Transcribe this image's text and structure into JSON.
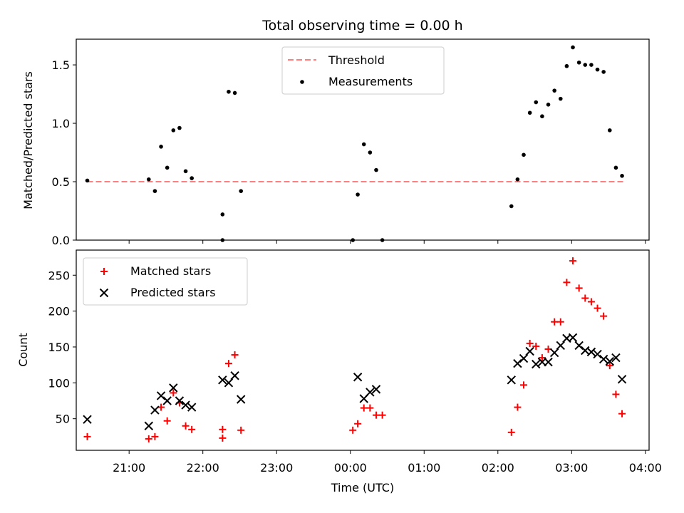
{
  "chart_data": [
    {
      "type": "scatter",
      "title": "Total observing time = 0.00 h",
      "xlabel": "",
      "ylabel": "Matched/Predicted stars",
      "ylim": [
        0,
        1.72
      ],
      "yticks": [
        "0.0",
        "0.5",
        "1.0",
        "1.5"
      ],
      "ytick_values": [
        0,
        0.5,
        1.0,
        1.5
      ],
      "legend_position": "upper-center",
      "threshold": {
        "name": "Threshold",
        "color": "#ff7f7f",
        "y": 0.5,
        "x_start": "20:26",
        "x_end": "03:42"
      },
      "series": [
        {
          "name": "Measurements",
          "color": "#000000",
          "marker": "dot",
          "points": [
            [
              "20:26",
              0.51
            ],
            [
              "21:16",
              0.52
            ],
            [
              "21:21",
              0.42
            ],
            [
              "21:26",
              0.8
            ],
            [
              "21:31",
              0.62
            ],
            [
              "21:36",
              0.94
            ],
            [
              "21:41",
              0.96
            ],
            [
              "21:46",
              0.59
            ],
            [
              "21:51",
              0.53
            ],
            [
              "22:16",
              0.22
            ],
            [
              "22:16",
              0.0
            ],
            [
              "22:21",
              1.27
            ],
            [
              "22:26",
              1.26
            ],
            [
              "22:31",
              0.42
            ],
            [
              "00:02",
              0.0
            ],
            [
              "00:06",
              0.39
            ],
            [
              "00:11",
              0.82
            ],
            [
              "00:16",
              0.75
            ],
            [
              "00:21",
              0.6
            ],
            [
              "00:26",
              0.0
            ],
            [
              "02:11",
              0.29
            ],
            [
              "02:16",
              0.52
            ],
            [
              "02:21",
              0.73
            ],
            [
              "02:26",
              1.09
            ],
            [
              "02:31",
              1.18
            ],
            [
              "02:36",
              1.06
            ],
            [
              "02:41",
              1.16
            ],
            [
              "02:46",
              1.28
            ],
            [
              "02:51",
              1.21
            ],
            [
              "02:56",
              1.49
            ],
            [
              "03:01",
              1.65
            ],
            [
              "03:06",
              1.52
            ],
            [
              "03:11",
              1.5
            ],
            [
              "03:16",
              1.5
            ],
            [
              "03:21",
              1.46
            ],
            [
              "03:26",
              1.44
            ],
            [
              "03:31",
              0.94
            ],
            [
              "03:36",
              0.62
            ],
            [
              "03:41",
              0.55
            ]
          ]
        }
      ]
    },
    {
      "type": "scatter",
      "title": "",
      "xlabel": "Time (UTC)",
      "ylabel": "Count",
      "ylim": [
        6,
        285
      ],
      "yticks": [
        "50",
        "100",
        "150",
        "200",
        "250"
      ],
      "ytick_values": [
        50,
        100,
        150,
        200,
        250
      ],
      "xticks": [
        "21:00",
        "22:00",
        "23:00",
        "00:00",
        "01:00",
        "02:00",
        "03:00",
        "04:00"
      ],
      "xlim": [
        "20:17",
        "04:03"
      ],
      "legend_position": "upper-left",
      "series": [
        {
          "name": "Matched stars",
          "color": "#ff0000",
          "marker": "plus",
          "points": [
            [
              "20:26",
              25
            ],
            [
              "21:16",
              22
            ],
            [
              "21:21",
              25
            ],
            [
              "21:26",
              66
            ],
            [
              "21:31",
              47
            ],
            [
              "21:36",
              86
            ],
            [
              "21:41",
              72
            ],
            [
              "21:46",
              40
            ],
            [
              "21:51",
              35
            ],
            [
              "22:16",
              35
            ],
            [
              "22:16",
              23
            ],
            [
              "22:21",
              127
            ],
            [
              "22:26",
              139
            ],
            [
              "22:31",
              34
            ],
            [
              "00:02",
              34
            ],
            [
              "00:06",
              43
            ],
            [
              "00:11",
              65
            ],
            [
              "00:16",
              65
            ],
            [
              "00:21",
              55
            ],
            [
              "00:26",
              55
            ],
            [
              "02:11",
              31
            ],
            [
              "02:16",
              66
            ],
            [
              "02:21",
              97
            ],
            [
              "02:26",
              155
            ],
            [
              "02:31",
              151
            ],
            [
              "02:36",
              135
            ],
            [
              "02:41",
              147
            ],
            [
              "02:46",
              185
            ],
            [
              "02:51",
              185
            ],
            [
              "02:56",
              240
            ],
            [
              "03:01",
              270
            ],
            [
              "03:06",
              232
            ],
            [
              "03:11",
              218
            ],
            [
              "03:16",
              213
            ],
            [
              "03:21",
              204
            ],
            [
              "03:26",
              193
            ],
            [
              "03:31",
              124
            ],
            [
              "03:36",
              84
            ],
            [
              "03:41",
              57
            ]
          ]
        },
        {
          "name": "Predicted stars",
          "color": "#000000",
          "marker": "x",
          "points": [
            [
              "20:26",
              49
            ],
            [
              "21:16",
              40
            ],
            [
              "21:21",
              62
            ],
            [
              "21:26",
              82
            ],
            [
              "21:31",
              75
            ],
            [
              "21:36",
              93
            ],
            [
              "21:41",
              75
            ],
            [
              "21:46",
              69
            ],
            [
              "21:51",
              66
            ],
            [
              "22:16",
              104
            ],
            [
              "22:21",
              100
            ],
            [
              "22:26",
              110
            ],
            [
              "22:31",
              77
            ],
            [
              "00:06",
              108
            ],
            [
              "00:11",
              78
            ],
            [
              "00:16",
              87
            ],
            [
              "00:21",
              91
            ],
            [
              "02:11",
              104
            ],
            [
              "02:16",
              127
            ],
            [
              "02:21",
              134
            ],
            [
              "02:26",
              144
            ],
            [
              "02:31",
              126
            ],
            [
              "02:36",
              129
            ],
            [
              "02:41",
              129
            ],
            [
              "02:46",
              142
            ],
            [
              "02:51",
              152
            ],
            [
              "02:56",
              162
            ],
            [
              "03:01",
              163
            ],
            [
              "03:06",
              152
            ],
            [
              "03:11",
              145
            ],
            [
              "03:16",
              143
            ],
            [
              "03:21",
              140
            ],
            [
              "03:26",
              133
            ],
            [
              "03:31",
              130
            ],
            [
              "03:36",
              135
            ],
            [
              "03:41",
              105
            ]
          ]
        }
      ]
    }
  ]
}
